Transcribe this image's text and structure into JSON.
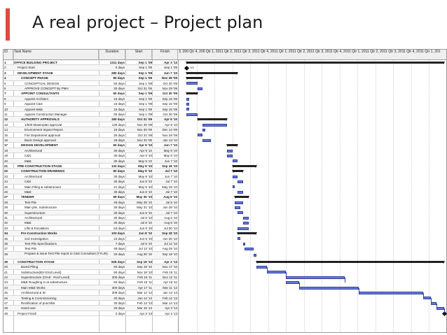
{
  "slide": {
    "title": "A real project – Project plan",
    "accent_color": "#e04a3f"
  },
  "gantt": {
    "columns": {
      "id": "ID",
      "name": "Task Name",
      "duration": "Duration",
      "start": "Start",
      "finish": "Finish"
    },
    "timescale_label": "3, 200 Qtr 4, 200 Qtr 1, 2011 Qtr 2, 2011 Qtr 3, 2011 Qtr 4, 2011 Qtr 1, 2011 Qtr 2, 2011 Qtr 3, 2011 Qtr 4, 2011 Qtr 1, 2011 Qtr 2, 2011 Qtr 3, 2011 Qtr 4, 2011 Qtr 1, 201",
    "milestone_label": "9/1",
    "tasks": [
      {
        "id": "1",
        "name": "OFFICE BUILDING PROJECT",
        "duration": "1311 days",
        "start": "Sep 1 '09",
        "finish": "Apr 3 '13",
        "level": 0,
        "bold": true,
        "summary": true,
        "s": 0.03,
        "e": 0.99
      },
      {
        "id": "2",
        "name": "Project Start",
        "duration": "0 days",
        "start": "Sep 1 '09",
        "finish": "Sep 1 '09",
        "level": 1,
        "bold": false,
        "milestone": true,
        "s": 0.03
      },
      {
        "id": "3",
        "name": "DEVELOPMENT STAGE",
        "duration": "280 days",
        "start": "Sep 1 '09",
        "finish": "Jun 7 '10",
        "level": 1,
        "bold": true,
        "summary": true,
        "s": 0.03,
        "e": 0.22
      },
      {
        "id": "4",
        "name": "CONCEPT PHASE",
        "duration": "90 days",
        "start": "Sep 1 '09",
        "finish": "Nov 29 '09",
        "level": 2,
        "bold": true,
        "summary": true,
        "s": 0.03,
        "e": 0.09
      },
      {
        "id": "5",
        "name": "CONCEPTUAL DESIGN",
        "duration": "60 days",
        "start": "Sep 1 '09",
        "finish": "Oct 30 '09",
        "level": 3,
        "bold": false,
        "s": 0.03,
        "e": 0.07
      },
      {
        "id": "6",
        "name": "APPROVE CONCEPT By PMH",
        "duration": "30 days",
        "start": "Oct 31 '09",
        "finish": "Nov 29 '09",
        "level": 3,
        "bold": false,
        "s": 0.07,
        "e": 0.09
      },
      {
        "id": "7",
        "name": "APPOINT CONSULTANTS",
        "duration": "60 days",
        "start": "Sep 1 '09",
        "finish": "Oct 30 '09",
        "level": 2,
        "bold": true,
        "summary": true,
        "s": 0.03,
        "e": 0.07
      },
      {
        "id": "8",
        "name": "Appoint Architect",
        "duration": "15 days",
        "start": "Sep 1 '09",
        "finish": "Sep 15 '09",
        "level": 3,
        "bold": false,
        "s": 0.03,
        "e": 0.04
      },
      {
        "id": "9",
        "name": "Appoint C&S",
        "duration": "15 days",
        "start": "Sep 1 '09",
        "finish": "Sep 15 '09",
        "level": 3,
        "bold": false,
        "s": 0.03,
        "e": 0.04
      },
      {
        "id": "10",
        "name": "Appoint M&E",
        "duration": "15 days",
        "start": "Sep 1 '09",
        "finish": "Sep 15 '09",
        "level": 3,
        "bold": false,
        "s": 0.03,
        "e": 0.04
      },
      {
        "id": "11",
        "name": "Appoint Construction Manager",
        "duration": "60 days",
        "start": "Sep 1 '09",
        "finish": "Oct 30 '09",
        "level": 3,
        "bold": false,
        "s": 0.03,
        "e": 0.07
      },
      {
        "id": "12",
        "name": "AUTHORITY APPROVALS",
        "duration": "160 days",
        "start": "Oct 31 '09",
        "finish": "Apr 8 '10",
        "level": 2,
        "bold": true,
        "summary": true,
        "s": 0.07,
        "e": 0.18
      },
      {
        "id": "13",
        "name": "1/500 Masterplan approval",
        "duration": "130 days",
        "start": "Nov 30 '09",
        "finish": "Apr 8 '10",
        "level": 3,
        "bold": false,
        "s": 0.09,
        "e": 0.18
      },
      {
        "id": "14",
        "name": "Environment Impact Report",
        "duration": "15 days",
        "start": "Nov 30 '09",
        "finish": "Dec 14 '09",
        "level": 3,
        "bold": false,
        "s": 0.09,
        "e": 0.1
      },
      {
        "id": "15",
        "name": "Fire Department approval",
        "duration": "30 days",
        "start": "Oct 31 '09",
        "finish": "Nov 29 '09",
        "level": 3,
        "bold": false,
        "s": 0.07,
        "e": 0.09
      },
      {
        "id": "16",
        "name": "Basic Design approval",
        "duration": "45 days",
        "start": "Nov 30 '09",
        "finish": "Jan 13 '10",
        "level": 3,
        "bold": false,
        "s": 0.09,
        "e": 0.12
      },
      {
        "id": "17",
        "name": "DESIGN DEVELOPMENT",
        "duration": "60 days",
        "start": "Apr 9 '10",
        "finish": "Jun 7 '10",
        "level": 2,
        "bold": true,
        "summary": true,
        "s": 0.18,
        "e": 0.22
      },
      {
        "id": "18",
        "name": "Architectural",
        "duration": "30 days",
        "start": "Apr 9 '10",
        "finish": "May 8 '10",
        "level": 3,
        "bold": false,
        "s": 0.18,
        "e": 0.2
      },
      {
        "id": "19",
        "name": "C&S",
        "duration": "30 days",
        "start": "Apr 9 '10",
        "finish": "May 8 '10",
        "level": 3,
        "bold": false,
        "s": 0.18,
        "e": 0.2
      },
      {
        "id": "20",
        "name": "M&E",
        "duration": "30 days",
        "start": "May 9 '10",
        "finish": "Jun 7 '10",
        "level": 3,
        "bold": false,
        "s": 0.2,
        "e": 0.22
      },
      {
        "id": "21",
        "name": "PRE-CONSTRUCTION STAGE",
        "duration": "133 days",
        "start": "May 9 '10",
        "finish": "Sep 18 '10",
        "level": 1,
        "bold": true,
        "summary": true,
        "s": 0.2,
        "e": 0.29
      },
      {
        "id": "22",
        "name": "CONSTRUCTION DRAWINGS",
        "duration": "60 days",
        "start": "May 9 '10",
        "finish": "Jul 7 '10",
        "level": 2,
        "bold": true,
        "summary": true,
        "s": 0.2,
        "e": 0.24
      },
      {
        "id": "23",
        "name": "Architectural",
        "duration": "30 days",
        "start": "May 9 '10",
        "finish": "Jun 7 '10",
        "level": 3,
        "bold": false,
        "s": 0.2,
        "e": 0.22
      },
      {
        "id": "24",
        "name": "C&S",
        "duration": "30 days",
        "start": "Jun 8 '10",
        "finish": "Jul 7 '10",
        "level": 3,
        "bold": false,
        "s": 0.22,
        "e": 0.24
      },
      {
        "id": "25",
        "name": "Main Piling & substructure",
        "duration": "21 days",
        "start": "May 9 '10",
        "finish": "May 29 '10",
        "level": 3,
        "bold": false,
        "s": 0.2,
        "e": 0.21
      },
      {
        "id": "26",
        "name": "M&E",
        "duration": "30 days",
        "start": "Jun 8 '10",
        "finish": "Jul 7 '10",
        "level": 3,
        "bold": false,
        "s": 0.22,
        "e": 0.24
      },
      {
        "id": "27",
        "name": "TENDER",
        "duration": "69 days",
        "start": "May 30 '10",
        "finish": "Aug 6 '10",
        "level": 2,
        "bold": true,
        "summary": true,
        "s": 0.21,
        "e": 0.26
      },
      {
        "id": "28",
        "name": "Test Pile",
        "duration": "28 days",
        "start": "May 30 '10",
        "finish": "Jul 5 '10",
        "level": 3,
        "bold": false,
        "s": 0.21,
        "e": 0.24
      },
      {
        "id": "29",
        "name": "Main pile, Substructure",
        "duration": "30 days",
        "start": "May 31 '10",
        "finish": "Jun 28 '10",
        "level": 3,
        "bold": false,
        "s": 0.21,
        "e": 0.23
      },
      {
        "id": "30",
        "name": "Superstructure",
        "duration": "30 days",
        "start": "Jun 8 '10",
        "finish": "Jul 7 '10",
        "level": 3,
        "bold": false,
        "s": 0.22,
        "e": 0.24
      },
      {
        "id": "31",
        "name": "Architectural",
        "duration": "30 days",
        "start": "Jul 8 '10",
        "finish": "Aug 6 '10",
        "level": 3,
        "bold": false,
        "s": 0.24,
        "e": 0.26
      },
      {
        "id": "32",
        "name": "M&E",
        "duration": "30 days",
        "start": "Jul 8 '10",
        "finish": "Aug 6 '10",
        "level": 3,
        "bold": false,
        "s": 0.24,
        "e": 0.26
      },
      {
        "id": "33",
        "name": "Lifts & Escalators",
        "duration": "53 days",
        "start": "Jun 8 '10",
        "finish": "Jul 30 '10",
        "level": 3,
        "bold": false,
        "s": 0.22,
        "e": 0.26
      },
      {
        "id": "34",
        "name": "Pre-Construction Works",
        "duration": "103 days",
        "start": "Jun 8 '10",
        "finish": "Sep 18 '10",
        "level": 2,
        "bold": true,
        "summary": true,
        "s": 0.22,
        "e": 0.29
      },
      {
        "id": "35",
        "name": "Soil Investigation",
        "duration": "23 days",
        "start": "Jun 8 '10",
        "finish": "Jun 30 '10",
        "level": 3,
        "bold": false,
        "s": 0.22,
        "e": 0.23
      },
      {
        "id": "36",
        "name": "Test Pile Specifications",
        "duration": "7 days",
        "start": "Jul 6 '10",
        "finish": "Jul 12 '10",
        "level": 3,
        "bold": false,
        "s": 0.24,
        "e": 0.245
      },
      {
        "id": "37",
        "name": "Test Pile",
        "duration": "48 days",
        "start": "Jul 13 '10",
        "finish": "Aug 29 '10",
        "level": 3,
        "bold": false,
        "s": 0.245,
        "e": 0.28
      },
      {
        "id": "38",
        "name": "Prepare & Issue Test Pile report to C&S Consultant (TYLIN)",
        "duration": "20 days",
        "start": "Aug 30 '10",
        "finish": "Sep 18 '10",
        "level": 3,
        "bold": false,
        "tall": true,
        "s": 0.28,
        "e": 0.29
      },
      {
        "id": "39",
        "name": "CONSTRUCTION STAGE",
        "duration": "928 days",
        "start": "Sep 19 '10",
        "finish": "Apr 3 '13",
        "level": 1,
        "bold": true,
        "summary": true,
        "s": 0.29,
        "e": 0.99
      },
      {
        "id": "40",
        "name": "Bored Piling",
        "duration": "60 days",
        "start": "Sep 19 '10",
        "finish": "Nov 17 '10",
        "level": 2,
        "bold": false,
        "s": 0.29,
        "e": 0.33
      },
      {
        "id": "41",
        "name": "Substructure(B3-Grnd Level)",
        "duration": "90 days",
        "start": "Nov 18 '10",
        "finish": "Feb 15 '11",
        "level": 2,
        "bold": false,
        "s": 0.33,
        "e": 0.4
      },
      {
        "id": "42",
        "name": "Superstructure (Grnd - Roof Level)",
        "duration": "300 days",
        "start": "Feb 16 '11",
        "finish": "Dec 12 '11",
        "level": 2,
        "bold": false,
        "s": 0.4,
        "e": 0.62
      },
      {
        "id": "43",
        "name": "M&E Roughing in at substructure",
        "duration": "60 days",
        "start": "Feb 16 '11",
        "finish": "Apr 16 '11",
        "level": 2,
        "bold": false,
        "s": 0.4,
        "e": 0.45
      },
      {
        "id": "44",
        "name": "Main M&E Works",
        "duration": "300 days",
        "start": "Apr 17 '11",
        "finish": "Mar 11 '12",
        "level": 2,
        "bold": false,
        "s": 0.45,
        "e": 0.67
      },
      {
        "id": "45",
        "name": "Architectural & ID",
        "duration": "308 days",
        "start": "Mar 12 '12",
        "finish": "Jan 13 '13",
        "level": 2,
        "bold": false,
        "s": 0.67,
        "e": 0.91
      },
      {
        "id": "46",
        "name": "Testing & Commissioning",
        "duration": "30 days",
        "start": "Jan 14 '13",
        "finish": "Feb 12 '13",
        "level": 2,
        "bold": false,
        "s": 0.91,
        "e": 0.94
      },
      {
        "id": "47",
        "name": "Rectification of punchlist",
        "duration": "30 days",
        "start": "Feb 13 '13",
        "finish": "Mar 14 '13",
        "level": 2,
        "bold": false,
        "s": 0.94,
        "e": 0.96
      },
      {
        "id": "48",
        "name": "Hand-over",
        "duration": "20 days",
        "start": "Mar 15 '13",
        "finish": "Apr 3 '13",
        "level": 2,
        "bold": false,
        "s": 0.96,
        "e": 0.99
      },
      {
        "id": "49",
        "name": "Project Finish",
        "duration": "0 days",
        "start": "Apr 3 '13",
        "finish": "Apr 3 '13",
        "level": 1,
        "bold": false,
        "milestone": true,
        "s": 0.99
      }
    ]
  }
}
